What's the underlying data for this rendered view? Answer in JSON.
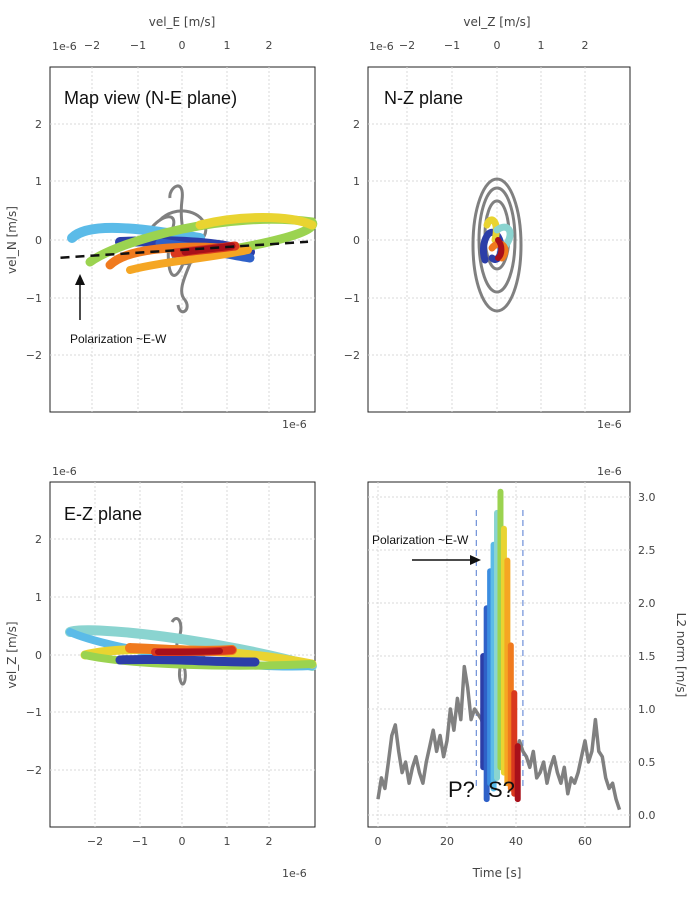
{
  "chart_data": [
    {
      "type": "scatter",
      "panel": "map-view",
      "title": "Map view (N-E plane)",
      "top_xlabel": "vel_E [m/s]",
      "ylabel": "vel_N [m/s]",
      "x_offset_label": "1e-6",
      "y_offset_label": "1e-6",
      "xlim": [
        -3,
        3
      ],
      "ylim": [
        -3,
        3
      ],
      "xticks": [
        "−2",
        "−1",
        "0",
        "1",
        "2"
      ],
      "yticks": [
        "2",
        "1",
        "0",
        "−1",
        "−2"
      ],
      "grid": true,
      "annotation": "Polarization ~E-W",
      "polarization_line": {
        "x": [
          -2.7,
          2.8
        ],
        "y": [
          -0.3,
          -0.03
        ]
      }
    },
    {
      "type": "scatter",
      "panel": "n-z",
      "title": "N-Z plane",
      "top_xlabel": "vel_Z [m/s]",
      "x_offset_label": "1e-6",
      "xlim": [
        -3,
        3
      ],
      "ylim": [
        -3,
        3
      ],
      "xticks": [
        "−2",
        "−1",
        "0",
        "1",
        "2"
      ],
      "yticks": [
        "2",
        "1",
        "0",
        "−1",
        "−2"
      ],
      "grid": true
    },
    {
      "type": "scatter",
      "panel": "e-z",
      "title": "E-Z plane",
      "ylabel": "vel_Z [m/s]",
      "x_offset_label": "1e-6",
      "y_offset_label": "1e-6",
      "xlim": [
        -3,
        3
      ],
      "ylim": [
        -3,
        3
      ],
      "xticks": [
        "−2",
        "−1",
        "0",
        "1",
        "2"
      ],
      "yticks": [
        "2",
        "1",
        "0",
        "−1",
        "−2"
      ],
      "grid": true
    },
    {
      "type": "line",
      "panel": "l2-norm",
      "xlabel": "Time [s]",
      "ylabel": "L2 norm [m/s]",
      "y_offset_label": "1e-6",
      "xlim": [
        -5,
        72
      ],
      "ylim": [
        -0.15,
        3.2
      ],
      "xticks": [
        "0",
        "20",
        "40",
        "60"
      ],
      "yticks": [
        "3.0",
        "2.5",
        "2.0",
        "1.5",
        "1.0",
        "0.5",
        "0.0"
      ],
      "grid": true,
      "annotation": "Polarization ~E-W",
      "labels": [
        "P?",
        "S?"
      ],
      "window_lines_x": [
        28.5,
        42
      ],
      "trace": {
        "x": [
          0,
          1,
          2,
          3,
          4,
          5,
          6,
          7,
          8,
          9,
          10,
          11,
          12,
          13,
          14,
          15,
          16,
          17,
          18,
          19,
          20,
          21,
          22,
          23,
          24,
          25,
          26,
          27,
          28,
          29,
          30,
          31,
          32,
          33,
          34,
          35,
          36,
          37,
          38,
          39,
          40,
          41,
          42,
          43,
          44,
          45,
          46,
          47,
          48,
          49,
          50,
          51,
          52,
          53,
          54,
          55,
          56,
          57,
          58,
          59,
          60,
          61,
          62,
          63,
          64,
          65,
          66,
          67,
          68,
          69,
          70
        ],
        "y": [
          0.15,
          0.35,
          0.25,
          0.5,
          0.75,
          0.85,
          0.6,
          0.4,
          0.5,
          0.3,
          0.45,
          0.55,
          0.4,
          0.3,
          0.5,
          0.65,
          0.8,
          0.6,
          0.75,
          0.55,
          0.7,
          1.0,
          0.8,
          1.1,
          0.9,
          1.4,
          1.2,
          0.9,
          1.0,
          0.95,
          0.9,
          0.8,
          0.7,
          0.6,
          0.5,
          0.75,
          0.7,
          0.6,
          0.65,
          0.5,
          0.55,
          0.7,
          0.6,
          0.55,
          0.45,
          0.6,
          0.35,
          0.4,
          0.5,
          0.3,
          0.45,
          0.55,
          0.4,
          0.3,
          0.45,
          0.2,
          0.35,
          0.3,
          0.4,
          0.55,
          0.7,
          0.5,
          0.6,
          0.9,
          0.6,
          0.55,
          0.35,
          0.25,
          0.3,
          0.15,
          0.05
        ]
      },
      "colored_bars": [
        {
          "x": 30.5,
          "y0": 0.45,
          "y1": 1.5,
          "color": "#2c3ea8"
        },
        {
          "x": 31.5,
          "y0": 0.15,
          "y1": 1.95,
          "color": "#2f61c8"
        },
        {
          "x": 32.5,
          "y0": 0.3,
          "y1": 2.3,
          "color": "#3b8de0"
        },
        {
          "x": 33.5,
          "y0": 0.25,
          "y1": 2.55,
          "color": "#5bbbe8"
        },
        {
          "x": 34.5,
          "y0": 0.35,
          "y1": 2.85,
          "color": "#8ad4d0"
        },
        {
          "x": 35.5,
          "y0": 0.45,
          "y1": 3.05,
          "color": "#9bd350"
        },
        {
          "x": 36.5,
          "y0": 0.4,
          "y1": 2.7,
          "color": "#e9d431"
        },
        {
          "x": 37.5,
          "y0": 0.3,
          "y1": 2.4,
          "color": "#f5a623"
        },
        {
          "x": 38.5,
          "y0": 0.25,
          "y1": 1.6,
          "color": "#f07a1e"
        },
        {
          "x": 39.5,
          "y0": 0.2,
          "y1": 1.15,
          "color": "#d9381e"
        },
        {
          "x": 40.5,
          "y0": 0.15,
          "y1": 0.65,
          "color": "#a8101a"
        }
      ]
    }
  ]
}
